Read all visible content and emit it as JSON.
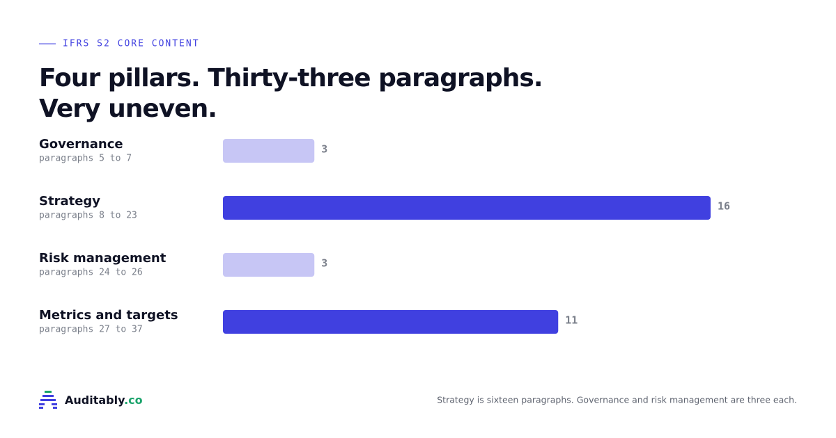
{
  "chart_data": {
    "type": "bar",
    "orientation": "horizontal",
    "eyebrow": "IFRS S2 CORE CONTENT",
    "title_lines": [
      "Four pillars. Thirty-three paragraphs.",
      "Very uneven."
    ],
    "categories": [
      "Governance",
      "Strategy",
      "Risk management",
      "Metrics and targets"
    ],
    "sublabels": [
      "paragraphs 5 to 7",
      "paragraphs 8 to 23",
      "paragraphs 24 to 26",
      "paragraphs 27 to 37"
    ],
    "values": [
      3,
      16,
      3,
      11
    ],
    "colors": [
      "#c7c6f5",
      "#4040e0",
      "#c7c6f5",
      "#4040e0"
    ],
    "brand": {
      "name": "Auditably",
      "suffix": ".co",
      "suffix_color": "#1aa36b"
    },
    "note": "Strategy is sixteen paragraphs. Governance and risk management are three each."
  }
}
